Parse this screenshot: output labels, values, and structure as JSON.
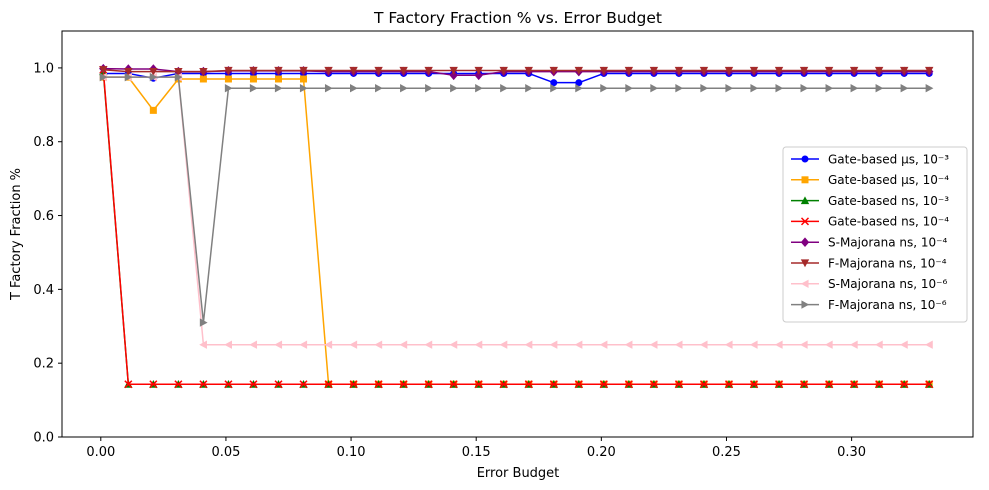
{
  "chart_data": {
    "type": "line",
    "title": "T Factory Fraction % vs. Error Budget",
    "xlabel": "Error Budget",
    "ylabel": "T Factory Fraction %",
    "xlim": [
      -0.0155,
      0.3485
    ],
    "ylim": [
      0.0,
      1.1
    ],
    "xticks": [
      0.0,
      0.05,
      0.1,
      0.15,
      0.2,
      0.25,
      0.3
    ],
    "xtick_labels": [
      "0.00",
      "0.05",
      "0.10",
      "0.15",
      "0.20",
      "0.25",
      "0.30"
    ],
    "yticks": [
      0.0,
      0.2,
      0.4,
      0.6,
      0.8,
      1.0
    ],
    "ytick_labels": [
      "0.0",
      "0.2",
      "0.4",
      "0.6",
      "0.8",
      "1.0"
    ],
    "grid": false,
    "legend_position": "center-right",
    "x": [
      0.001,
      0.011,
      0.021,
      0.031,
      0.041,
      0.051,
      0.061,
      0.071,
      0.081,
      0.091,
      0.101,
      0.111,
      0.121,
      0.131,
      0.141,
      0.151,
      0.161,
      0.171,
      0.181,
      0.191,
      0.201,
      0.211,
      0.221,
      0.231,
      0.241,
      0.251,
      0.261,
      0.271,
      0.281,
      0.291,
      0.301,
      0.311,
      0.321,
      0.331
    ],
    "series": [
      {
        "name": "Gate-based μs, 10⁻³",
        "color": "#0000ff",
        "marker": "circle",
        "values": [
          0.985,
          0.985,
          0.972,
          0.985,
          0.985,
          0.985,
          0.985,
          0.985,
          0.985,
          0.985,
          0.985,
          0.985,
          0.985,
          0.985,
          0.985,
          0.985,
          0.985,
          0.985,
          0.96,
          0.96,
          0.985,
          0.985,
          0.985,
          0.985,
          0.985,
          0.985,
          0.985,
          0.985,
          0.985,
          0.985,
          0.985,
          0.985,
          0.985,
          0.985
        ]
      },
      {
        "name": "Gate-based μs, 10⁻⁴",
        "color": "#ffa500",
        "marker": "square",
        "values": [
          0.975,
          0.975,
          0.885,
          0.97,
          0.97,
          0.97,
          0.97,
          0.97,
          0.97,
          0.143,
          0.143,
          0.143,
          0.143,
          0.143,
          0.143,
          0.143,
          0.143,
          0.143,
          0.143,
          0.143,
          0.143,
          0.143,
          0.143,
          0.143,
          0.143,
          0.143,
          0.143,
          0.143,
          0.143,
          0.143,
          0.143,
          0.143,
          0.143,
          0.143
        ]
      },
      {
        "name": "Gate-based ns, 10⁻³",
        "color": "#008000",
        "marker": "triangle-up",
        "values": [
          0.99,
          0.143,
          0.143,
          0.143,
          0.143,
          0.143,
          0.143,
          0.143,
          0.143,
          0.143,
          0.143,
          0.143,
          0.143,
          0.143,
          0.143,
          0.143,
          0.143,
          0.143,
          0.143,
          0.143,
          0.143,
          0.143,
          0.143,
          0.143,
          0.143,
          0.143,
          0.143,
          0.143,
          0.143,
          0.143,
          0.143,
          0.143,
          0.143,
          0.143
        ]
      },
      {
        "name": "Gate-based ns, 10⁻⁴",
        "color": "#ff0000",
        "marker": "x",
        "values": [
          0.995,
          0.143,
          0.143,
          0.143,
          0.143,
          0.143,
          0.143,
          0.143,
          0.143,
          0.143,
          0.143,
          0.143,
          0.143,
          0.143,
          0.143,
          0.143,
          0.143,
          0.143,
          0.143,
          0.143,
          0.143,
          0.143,
          0.143,
          0.143,
          0.143,
          0.143,
          0.143,
          0.143,
          0.143,
          0.143,
          0.143,
          0.143,
          0.143,
          0.143
        ]
      },
      {
        "name": "S-Majorana ns, 10⁻⁴",
        "color": "#800080",
        "marker": "diamond",
        "values": [
          0.998,
          0.997,
          0.997,
          0.99,
          0.99,
          0.992,
          0.992,
          0.992,
          0.992,
          0.99,
          0.99,
          0.99,
          0.99,
          0.99,
          0.98,
          0.98,
          0.99,
          0.99,
          0.99,
          0.99,
          0.99,
          0.99,
          0.99,
          0.99,
          0.99,
          0.99,
          0.99,
          0.99,
          0.99,
          0.99,
          0.99,
          0.99,
          0.99,
          0.99
        ]
      },
      {
        "name": "F-Majorana ns, 10⁻⁴",
        "color": "#a52a2a",
        "marker": "triangle-down",
        "values": [
          0.995,
          0.99,
          0.99,
          0.99,
          0.99,
          0.993,
          0.993,
          0.993,
          0.993,
          0.993,
          0.993,
          0.993,
          0.993,
          0.993,
          0.993,
          0.993,
          0.993,
          0.993,
          0.993,
          0.993,
          0.993,
          0.993,
          0.993,
          0.993,
          0.993,
          0.993,
          0.993,
          0.993,
          0.993,
          0.993,
          0.993,
          0.993,
          0.993,
          0.993
        ]
      },
      {
        "name": "S-Majorana ns, 10⁻⁶",
        "color": "#ffc0cb",
        "marker": "triangle-left",
        "values": [
          0.975,
          0.975,
          0.975,
          0.975,
          0.25,
          0.25,
          0.25,
          0.25,
          0.25,
          0.25,
          0.25,
          0.25,
          0.25,
          0.25,
          0.25,
          0.25,
          0.25,
          0.25,
          0.25,
          0.25,
          0.25,
          0.25,
          0.25,
          0.25,
          0.25,
          0.25,
          0.25,
          0.25,
          0.25,
          0.25,
          0.25,
          0.25,
          0.25,
          0.25
        ]
      },
      {
        "name": "F-Majorana ns, 10⁻⁶",
        "color": "#808080",
        "marker": "triangle-right",
        "values": [
          0.975,
          0.975,
          0.975,
          0.975,
          0.31,
          0.945,
          0.945,
          0.945,
          0.945,
          0.945,
          0.945,
          0.945,
          0.945,
          0.945,
          0.945,
          0.945,
          0.945,
          0.945,
          0.945,
          0.945,
          0.945,
          0.945,
          0.945,
          0.945,
          0.945,
          0.945,
          0.945,
          0.945,
          0.945,
          0.945,
          0.945,
          0.945,
          0.945,
          0.945
        ]
      }
    ]
  }
}
